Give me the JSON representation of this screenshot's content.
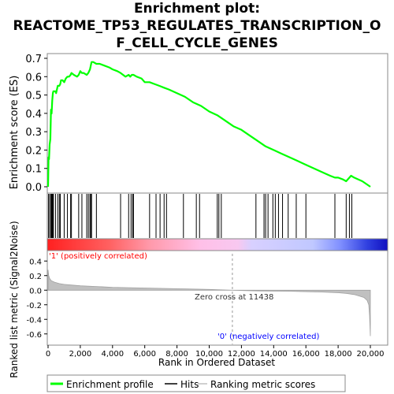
{
  "title_lines": [
    "Enrichment plot:",
    "REACTOME_TP53_REGULATES_TRANSCRIPTION_O",
    "F_CELL_CYCLE_GENES"
  ],
  "chart_data": [
    {
      "type": "line",
      "panel": "enrichment",
      "ylabel": "Enrichment score (ES)",
      "ylim": [
        0,
        0.7
      ],
      "yticks": [
        "0.0",
        "0.1",
        "0.2",
        "0.3",
        "0.4",
        "0.5",
        "0.6",
        "0.7"
      ],
      "xlim": [
        0,
        21000
      ],
      "line_color": "#00ff00",
      "series": [
        {
          "name": "Enrichment profile",
          "x": [
            0,
            30,
            60,
            100,
            140,
            180,
            220,
            260,
            300,
            330,
            380,
            420,
            460,
            500,
            600,
            700,
            760,
            800,
            900,
            1000,
            1100,
            1200,
            1300,
            1400,
            1450,
            1600,
            1800,
            1900,
            2000,
            2100,
            2200,
            2400,
            2500,
            2600,
            2650,
            2700,
            2800,
            3000,
            3200,
            3500,
            3800,
            4000,
            4300,
            4500,
            4800,
            5000,
            5100,
            5200,
            5300,
            5500,
            5800,
            6000,
            6300,
            6600,
            6900,
            7200,
            7500,
            8000,
            8500,
            9000,
            9500,
            10000,
            10500,
            11000,
            11500,
            12000,
            12500,
            13000,
            13500,
            14000,
            14500,
            15000,
            15500,
            16000,
            16500,
            17000,
            17500,
            17800,
            18000,
            18300,
            18500,
            18700,
            18800,
            19000,
            19500,
            20000
          ],
          "y": [
            0.0,
            0.16,
            0.15,
            0.23,
            0.26,
            0.42,
            0.4,
            0.47,
            0.51,
            0.52,
            0.52,
            0.52,
            0.52,
            0.51,
            0.55,
            0.55,
            0.56,
            0.58,
            0.58,
            0.57,
            0.59,
            0.6,
            0.6,
            0.61,
            0.62,
            0.61,
            0.6,
            0.61,
            0.63,
            0.62,
            0.62,
            0.61,
            0.62,
            0.64,
            0.66,
            0.68,
            0.68,
            0.67,
            0.67,
            0.66,
            0.65,
            0.64,
            0.63,
            0.62,
            0.6,
            0.61,
            0.6,
            0.61,
            0.61,
            0.6,
            0.59,
            0.57,
            0.57,
            0.56,
            0.55,
            0.54,
            0.53,
            0.51,
            0.49,
            0.46,
            0.44,
            0.41,
            0.39,
            0.36,
            0.33,
            0.31,
            0.28,
            0.25,
            0.22,
            0.2,
            0.18,
            0.16,
            0.14,
            0.12,
            0.1,
            0.08,
            0.06,
            0.05,
            0.05,
            0.04,
            0.03,
            0.05,
            0.06,
            0.05,
            0.03,
            0.0
          ]
        }
      ],
      "hits": [
        30,
        100,
        180,
        220,
        260,
        300,
        330,
        460,
        600,
        700,
        760,
        1000,
        1200,
        1400,
        1450,
        1900,
        2100,
        2400,
        2500,
        2600,
        2650,
        2700,
        3000,
        4500,
        5000,
        5150,
        5250,
        5300,
        6300,
        6700,
        6950,
        7200,
        7350,
        8400,
        9200,
        9400,
        10500,
        10600,
        10750,
        12900,
        13400,
        13500,
        13650,
        13950,
        14100,
        14300,
        14550,
        14900,
        15400,
        16000,
        17800,
        18500,
        18700,
        18850
      ]
    },
    {
      "type": "area",
      "panel": "ranked_metric",
      "ylabel": "Ranked list metric (Signal2Noise)",
      "xlabel": "Rank in Ordered Dataset",
      "ylim": [
        -0.7,
        0.5
      ],
      "yticks": [
        "-0.6",
        "-0.4",
        "-0.2",
        "0.0",
        "0.2",
        "0.4"
      ],
      "xticks": [
        "0",
        "2,000",
        "4,000",
        "6,000",
        "8,000",
        "10,000",
        "12,000",
        "14,000",
        "16,000",
        "18,000",
        "20,000"
      ],
      "xtick_values": [
        0,
        2000,
        4000,
        6000,
        8000,
        10000,
        12000,
        14000,
        16000,
        18000,
        20000
      ],
      "x": [
        0,
        40,
        100,
        200,
        400,
        700,
        1000,
        1500,
        2000,
        3000,
        4000,
        6000,
        8000,
        10000,
        11438,
        13000,
        15000,
        17000,
        18000,
        18500,
        19000,
        19300,
        19600,
        19800,
        19900,
        19950,
        20000
      ],
      "y": [
        0.28,
        0.2,
        0.16,
        0.13,
        0.11,
        0.09,
        0.08,
        0.07,
        0.06,
        0.05,
        0.04,
        0.03,
        0.02,
        0.01,
        0.0,
        -0.01,
        -0.015,
        -0.025,
        -0.035,
        -0.045,
        -0.06,
        -0.08,
        -0.1,
        -0.14,
        -0.2,
        -0.35,
        -0.63
      ],
      "annotations": {
        "positive": "'1' (positively correlated)",
        "negative": "'0' (negatively correlated)",
        "zero_cross": "Zero cross at 11438"
      },
      "zero_cross": 11438
    }
  ],
  "legend": {
    "items": [
      {
        "label": "Enrichment profile",
        "color": "#00ff00"
      },
      {
        "label": "Hits",
        "color": "#000000"
      },
      {
        "label": "Ranking metric scores",
        "color": "#c0c0c0"
      }
    ]
  },
  "colors": {
    "positive_label": "#ff0000",
    "negative_label": "#0000ff",
    "metric_fill": "#c0c0c0"
  }
}
